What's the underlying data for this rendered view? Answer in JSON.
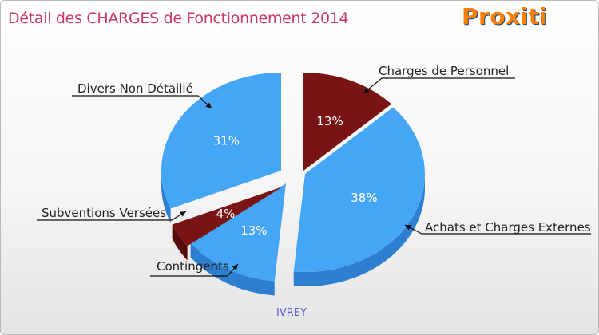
{
  "title": "Détail des CHARGES de Fonctionnement 2014",
  "logo_text": "Proxiti",
  "colors": {
    "blue": "#45a6f5",
    "blue_side": "#2f7fd0",
    "red": "#7a1414",
    "red_side": "#5a0b0b",
    "title": "#c8376e"
  },
  "chart_data": {
    "type": "pie",
    "title": "Détail des CHARGES de Fonctionnement 2014",
    "subtitle": "IVREY",
    "slices": [
      {
        "label": "Charges de Personnel",
        "value": 13,
        "display": "13%",
        "color": "red"
      },
      {
        "label": "Achats et Charges Externes",
        "value": 38,
        "display": "38%",
        "color": "blue"
      },
      {
        "label": "Contingents",
        "value": 13,
        "display": "13%",
        "color": "blue"
      },
      {
        "label": "Subventions Versées",
        "value": 4,
        "display": "4%",
        "color": "red"
      },
      {
        "label": "Divers Non Détaillé",
        "value": 31,
        "display": "31%",
        "color": "blue"
      }
    ]
  }
}
